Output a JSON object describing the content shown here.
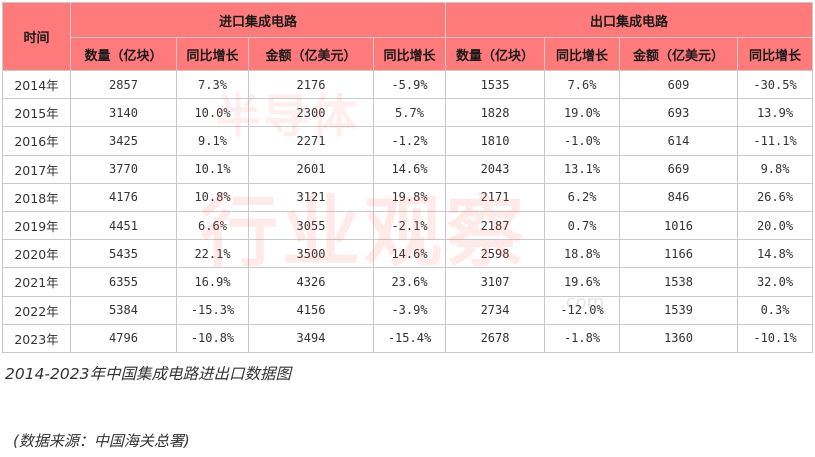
{
  "table": {
    "header_time": "时间",
    "group_import": "进口集成电路",
    "group_export": "出口集成电路",
    "columns": [
      "数量（亿块）",
      "同比增长",
      "金额（亿美元）",
      "同比增长",
      "数量（亿块）",
      "同比增长",
      "金额（亿美元）",
      "同比增长"
    ],
    "rows": [
      [
        "2014年",
        "2857",
        "7.3%",
        "2176",
        "-5.9%",
        "1535",
        "7.6%",
        "609",
        "-30.5%"
      ],
      [
        "2015年",
        "3140",
        "10.0%",
        "2300",
        "5.7%",
        "1828",
        "19.0%",
        "693",
        "13.9%"
      ],
      [
        "2016年",
        "3425",
        "9.1%",
        "2271",
        "-1.2%",
        "1810",
        "-1.0%",
        "614",
        "-11.1%"
      ],
      [
        "2017年",
        "3770",
        "10.1%",
        "2601",
        "14.6%",
        "2043",
        "13.1%",
        "669",
        "9.8%"
      ],
      [
        "2018年",
        "4176",
        "10.8%",
        "3121",
        "19.8%",
        "2171",
        "6.2%",
        "846",
        "26.6%"
      ],
      [
        "2019年",
        "4451",
        "6.6%",
        "3055",
        "-2.1%",
        "2187",
        "0.7%",
        "1016",
        "20.0%"
      ],
      [
        "2020年",
        "5435",
        "22.1%",
        "3500",
        "14.6%",
        "2598",
        "18.8%",
        "1166",
        "14.8%"
      ],
      [
        "2021年",
        "6355",
        "16.9%",
        "4326",
        "23.6%",
        "3107",
        "19.6%",
        "1538",
        "32.0%"
      ],
      [
        "2022年",
        "5384",
        "-15.3%",
        "4156",
        "-3.9%",
        "2734",
        "-12.0%",
        "1539",
        "0.3%"
      ],
      [
        "2023年",
        "4796",
        "-10.8%",
        "3494",
        "-15.4%",
        "2678",
        "-1.8%",
        "1360",
        "-10.1%"
      ]
    ]
  },
  "watermark": {
    "top": "半导体",
    "main": "行业观察",
    "com": ".com"
  },
  "caption": "2014-2023年中国集成电路进出口数据图",
  "source": "(数据来源：中国海关总署)",
  "colors": {
    "header_bg": "#ff7b7b",
    "border": "#c9c9c9"
  }
}
